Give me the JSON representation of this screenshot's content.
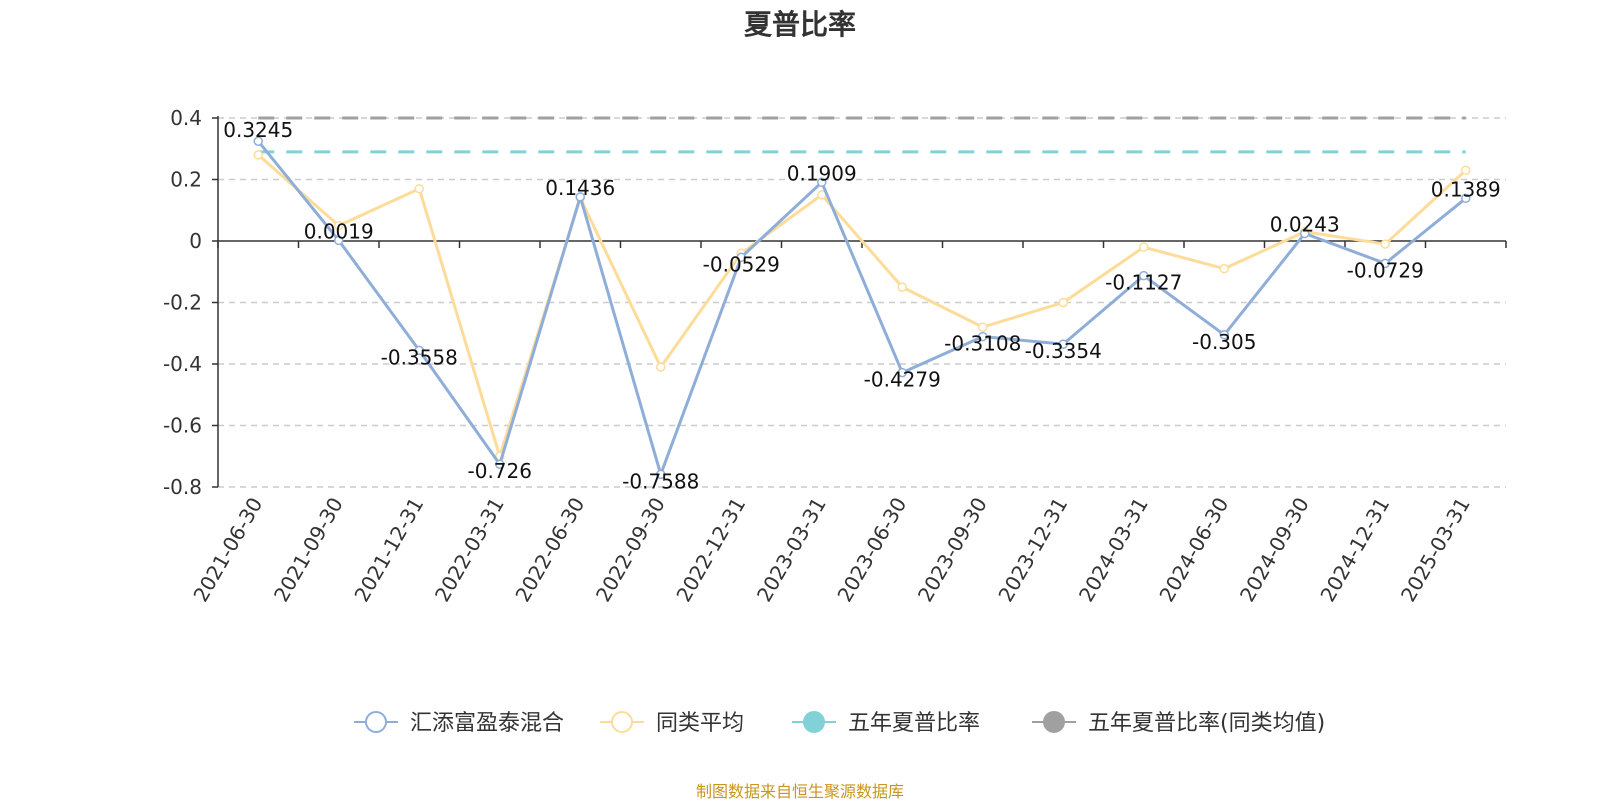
{
  "chart_data": {
    "type": "line",
    "title": "夏普比率",
    "categories": [
      "2021-06-30",
      "2021-09-30",
      "2021-12-31",
      "2022-03-31",
      "2022-06-30",
      "2022-09-30",
      "2022-12-31",
      "2023-03-31",
      "2023-06-30",
      "2023-09-30",
      "2023-12-31",
      "2024-03-31",
      "2024-06-30",
      "2024-09-30",
      "2024-12-31",
      "2025-03-31"
    ],
    "ylim": [
      -0.8,
      0.4
    ],
    "yticks": [
      0.4,
      0.2,
      0,
      -0.2,
      -0.4,
      -0.6,
      -0.8
    ],
    "ytick_labels": [
      "0.4",
      "0.2",
      "0",
      "-0.2",
      "-0.4",
      "-0.6",
      "-0.8"
    ],
    "grid": true,
    "legend_position": "bottom",
    "series": [
      {
        "name": "汇添富盈泰混合",
        "color": "#8eaed9",
        "labeled": true,
        "values": [
          0.3245,
          0.0019,
          -0.3558,
          -0.726,
          0.1436,
          -0.7588,
          -0.0529,
          0.1909,
          -0.4279,
          -0.3108,
          -0.3354,
          -0.1127,
          -0.305,
          0.0243,
          -0.0729,
          0.1389
        ],
        "labels": [
          "0.3245",
          "0.0019",
          "-0.3558",
          "-0.726",
          "0.1436",
          "-0.7588",
          "-0.0529",
          "0.1909",
          "-0.4279",
          "-0.3108",
          "-0.3354",
          "-0.1127",
          "-0.305",
          "0.0243",
          "-0.0729",
          "0.1389"
        ]
      },
      {
        "name": "同类平均",
        "color": "#fddc9a",
        "labeled": false,
        "values": [
          0.28,
          0.05,
          0.17,
          -0.7,
          0.14,
          -0.41,
          -0.04,
          0.15,
          -0.15,
          -0.28,
          -0.2,
          -0.02,
          -0.09,
          0.03,
          -0.01,
          0.23
        ]
      },
      {
        "name": "五年夏普比率",
        "color": "#80d2d6",
        "dashed": true,
        "values": [
          0.29,
          0.29,
          0.29,
          0.29,
          0.29,
          0.29,
          0.29,
          0.29,
          0.29,
          0.29,
          0.29,
          0.29,
          0.29,
          0.29,
          0.29,
          0.29
        ]
      },
      {
        "name": "五年夏普比率(同类均值)",
        "color": "#a0a0a0",
        "dashed": true,
        "values": [
          0.4,
          0.4,
          0.4,
          0.4,
          0.4,
          0.4,
          0.4,
          0.4,
          0.4,
          0.4,
          0.4,
          0.4,
          0.4,
          0.4,
          0.4,
          0.4
        ]
      }
    ]
  },
  "footer": {
    "source": "制图数据来自恒生聚源数据库"
  }
}
